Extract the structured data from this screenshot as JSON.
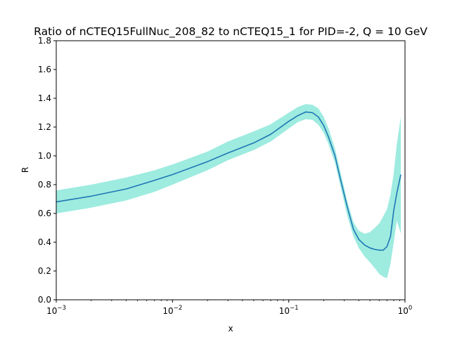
{
  "chart_data": {
    "type": "line",
    "title": "Ratio of nCTEQ15FullNuc_208_82 to nCTEQ15_1 for PID=-2, Q = 10 GeV",
    "xlabel": "x",
    "ylabel": "R",
    "xscale": "log",
    "xlim": [
      0.001,
      1
    ],
    "ylim": [
      0.0,
      1.8
    ],
    "grid": false,
    "legend": "none",
    "x_ticks": [
      {
        "value": 0.001,
        "base": "10",
        "exp": "−3"
      },
      {
        "value": 0.01,
        "base": "10",
        "exp": "−2"
      },
      {
        "value": 0.1,
        "base": "10",
        "exp": "−1"
      },
      {
        "value": 1,
        "base": "10",
        "exp": "0"
      }
    ],
    "y_ticks": [
      {
        "value": 0.0,
        "label": "0.0"
      },
      {
        "value": 0.2,
        "label": "0.2"
      },
      {
        "value": 0.4,
        "label": "0.4"
      },
      {
        "value": 0.6,
        "label": "0.6"
      },
      {
        "value": 0.8,
        "label": "0.8"
      },
      {
        "value": 1.0,
        "label": "1.0"
      },
      {
        "value": 1.2,
        "label": "1.2"
      },
      {
        "value": 1.4,
        "label": "1.4"
      },
      {
        "value": 1.6,
        "label": "1.6"
      },
      {
        "value": 1.8,
        "label": "1.8"
      }
    ],
    "colors": {
      "line": "#1f77b4",
      "band": "#9eebe0"
    },
    "series": [
      {
        "x": [
          0.001,
          0.002,
          0.004,
          0.007,
          0.01,
          0.02,
          0.03,
          0.05,
          0.07,
          0.1,
          0.12,
          0.14,
          0.16,
          0.18,
          0.2,
          0.22,
          0.25,
          0.28,
          0.32,
          0.36,
          0.4,
          0.45,
          0.5,
          0.55,
          0.6,
          0.65,
          0.7,
          0.75,
          0.8,
          0.85,
          0.92
        ],
        "y": [
          0.68,
          0.72,
          0.77,
          0.83,
          0.87,
          0.96,
          1.02,
          1.09,
          1.15,
          1.24,
          1.28,
          1.305,
          1.3,
          1.27,
          1.21,
          1.13,
          1.0,
          0.83,
          0.64,
          0.49,
          0.42,
          0.38,
          0.36,
          0.35,
          0.345,
          0.345,
          0.37,
          0.44,
          0.62,
          0.74,
          0.87
        ],
        "lower": [
          0.6,
          0.64,
          0.69,
          0.75,
          0.8,
          0.9,
          0.97,
          1.04,
          1.1,
          1.19,
          1.235,
          1.255,
          1.25,
          1.215,
          1.16,
          1.08,
          0.95,
          0.78,
          0.58,
          0.44,
          0.36,
          0.3,
          0.26,
          0.22,
          0.18,
          0.16,
          0.15,
          0.25,
          0.4,
          0.55,
          0.46
        ],
        "upper": [
          0.76,
          0.8,
          0.85,
          0.9,
          0.94,
          1.03,
          1.1,
          1.17,
          1.22,
          1.3,
          1.34,
          1.36,
          1.355,
          1.33,
          1.27,
          1.19,
          1.05,
          0.88,
          0.68,
          0.54,
          0.48,
          0.46,
          0.47,
          0.5,
          0.53,
          0.58,
          0.63,
          0.73,
          0.88,
          1.08,
          1.27
        ]
      }
    ]
  }
}
